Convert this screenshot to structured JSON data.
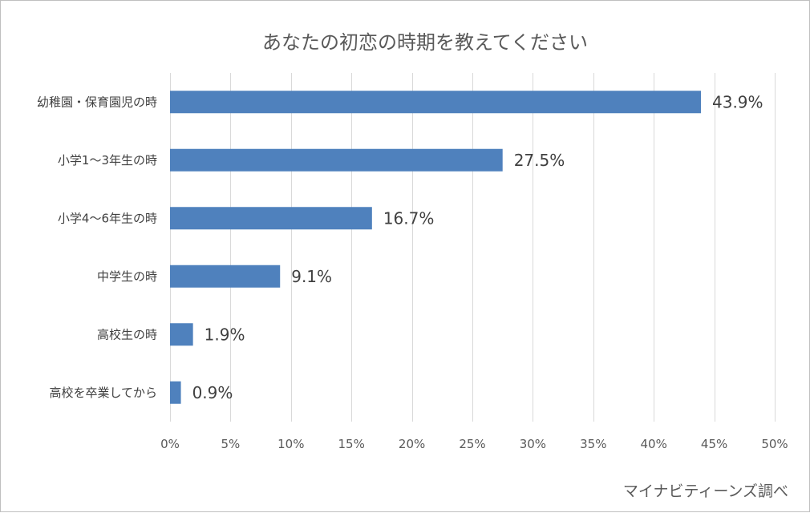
{
  "chart_data": {
    "type": "bar",
    "orientation": "horizontal",
    "title": "あなたの初恋の時期を教えてください",
    "categories": [
      "幼稚園・保育園児の時",
      "小学1～3年生の時",
      "小学4～6年生の時",
      "中学生の時",
      "高校生の時",
      "高校を卒業してから"
    ],
    "values": [
      43.9,
      27.5,
      16.7,
      9.1,
      1.9,
      0.9
    ],
    "value_labels": [
      "43.9%",
      "27.5%",
      "16.7%",
      "9.1%",
      "1.9%",
      "0.9%"
    ],
    "xlim": [
      0,
      50
    ],
    "xticks": [
      0,
      5,
      10,
      15,
      20,
      25,
      30,
      35,
      40,
      45,
      50
    ],
    "xtick_labels": [
      "0%",
      "5%",
      "10%",
      "15%",
      "20%",
      "25%",
      "30%",
      "35%",
      "40%",
      "45%",
      "50%"
    ],
    "grid": true,
    "bar_color": "#4f81bd",
    "grid_color": "#d9d9d9"
  },
  "credit": "マイナビティーンズ調べ"
}
